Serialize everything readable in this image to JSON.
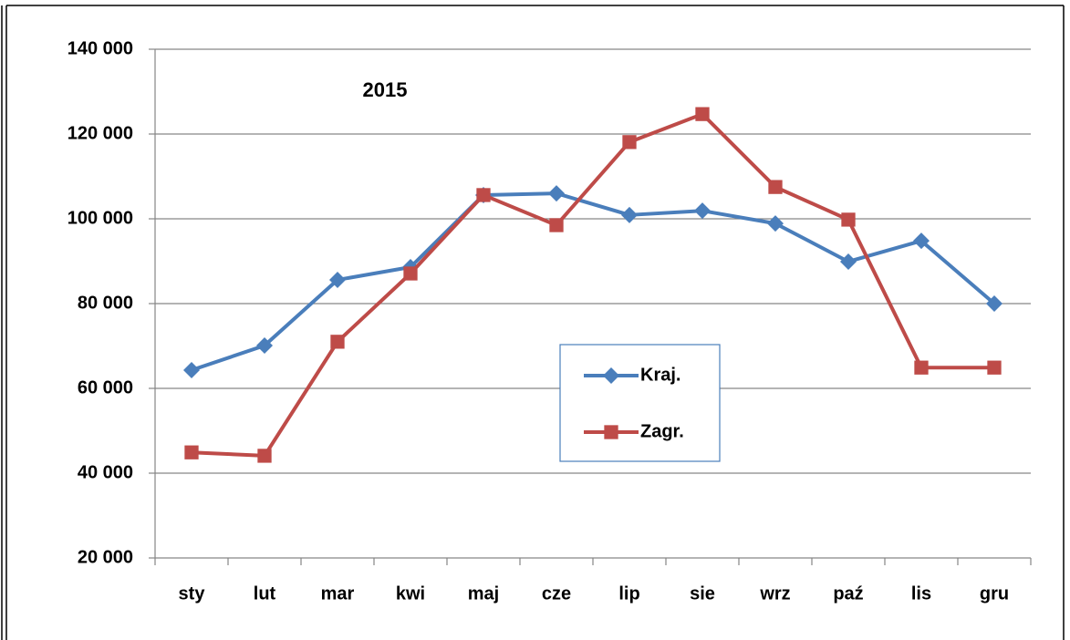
{
  "chart_data": {
    "type": "line",
    "annotation": "2015",
    "categories": [
      "sty",
      "lut",
      "mar",
      "kwi",
      "maj",
      "cze",
      "lip",
      "sie",
      "wrz",
      "paź",
      "lis",
      "gru"
    ],
    "series": [
      {
        "name": "Kraj.",
        "color": "#4a7ebb",
        "marker": "diamond",
        "values": [
          64300,
          70100,
          85600,
          88600,
          105600,
          106000,
          100900,
          101900,
          98900,
          89900,
          94800,
          80000
        ]
      },
      {
        "name": "Zagr.",
        "color": "#be4b48",
        "marker": "square",
        "values": [
          44900,
          44100,
          71000,
          87100,
          105600,
          98500,
          118100,
          124700,
          107500,
          99800,
          64900,
          64900
        ]
      }
    ],
    "ylim": [
      20000,
      140000
    ],
    "yticks": [
      {
        "value": 20000,
        "label": "20 000"
      },
      {
        "value": 40000,
        "label": "40 000"
      },
      {
        "value": 60000,
        "label": "60 000"
      },
      {
        "value": 80000,
        "label": "80 000"
      },
      {
        "value": 100000,
        "label": "100 000"
      },
      {
        "value": 120000,
        "label": "120 000"
      },
      {
        "value": 140000,
        "label": "140 000"
      }
    ],
    "grid": true
  }
}
